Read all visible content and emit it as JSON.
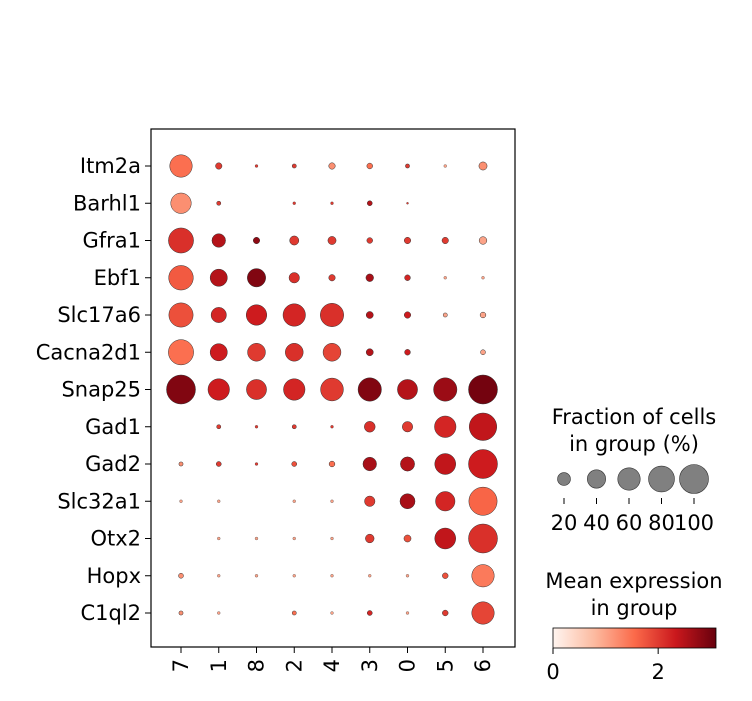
{
  "chart_data": {
    "type": "dotplot",
    "genes": [
      "Itm2a",
      "Barhl1",
      "Gfra1",
      "Ebf1",
      "Slc17a6",
      "Cacna2d1",
      "Snap25",
      "Gad1",
      "Gad2",
      "Slc32a1",
      "Otx2",
      "Hopx",
      "C1ql2"
    ],
    "groups": [
      "7",
      "1",
      "8",
      "2",
      "4",
      "3",
      "0",
      "5",
      "6"
    ],
    "fraction_pct": [
      [
        60,
        5,
        1,
        2,
        5,
        4,
        2,
        1,
        8
      ],
      [
        50,
        2,
        0,
        1,
        1,
        3,
        0.5,
        0,
        0
      ],
      [
        75,
        22,
        5,
        10,
        8,
        4,
        5,
        5,
        7
      ],
      [
        72,
        35,
        40,
        13,
        5,
        7,
        4,
        1,
        1
      ],
      [
        70,
        28,
        50,
        60,
        65,
        6,
        5,
        2,
        4
      ],
      [
        76,
        35,
        38,
        38,
        38,
        6,
        4,
        0,
        3
      ],
      [
        100,
        55,
        48,
        55,
        62,
        65,
        48,
        65,
        100
      ],
      [
        0,
        2,
        1,
        2,
        1,
        14,
        13,
        55,
        90
      ],
      [
        2,
        3,
        1,
        3,
        4,
        22,
        24,
        52,
        100
      ],
      [
        1,
        1,
        0,
        1,
        1,
        13,
        27,
        45,
        95
      ],
      [
        0,
        1,
        1,
        1,
        1,
        9,
        6,
        52,
        100
      ],
      [
        3,
        1,
        1,
        1,
        1,
        1,
        1,
        4,
        60
      ],
      [
        2,
        1,
        0,
        2,
        1,
        3,
        1,
        4,
        60
      ]
    ],
    "mean_expression": [
      [
        1.5,
        2.0,
        2.0,
        2.0,
        1.2,
        1.5,
        2.0,
        1.0,
        1.2
      ],
      [
        1.2,
        2.0,
        2.0,
        2.0,
        2.0,
        2.5,
        2.0,
        1.0,
        1.0
      ],
      [
        2.1,
        2.5,
        2.8,
        2.0,
        2.0,
        2.0,
        2.0,
        2.0,
        1.0
      ],
      [
        1.7,
        2.5,
        2.9,
        2.1,
        2.0,
        2.6,
        2.2,
        1.0,
        1.0
      ],
      [
        1.8,
        2.2,
        2.3,
        2.2,
        2.1,
        2.5,
        2.3,
        1.0,
        1.0
      ],
      [
        1.5,
        2.3,
        2.0,
        2.1,
        1.9,
        2.5,
        2.3,
        1.0,
        1.0
      ],
      [
        2.9,
        2.3,
        2.1,
        2.2,
        2.0,
        2.9,
        2.5,
        2.7,
        3.0
      ],
      [
        0,
        2.0,
        2.0,
        2.0,
        2.0,
        2.1,
        2.0,
        2.2,
        2.4
      ],
      [
        1.2,
        2.0,
        2.0,
        1.8,
        1.5,
        2.6,
        2.5,
        2.4,
        2.3
      ],
      [
        1.0,
        1.0,
        0,
        1.0,
        1.0,
        2.0,
        2.6,
        2.2,
        1.6
      ],
      [
        0,
        1.0,
        1.0,
        1.0,
        1.0,
        2.0,
        1.8,
        2.4,
        2.1
      ],
      [
        1.2,
        1.0,
        1.0,
        1.0,
        1.0,
        1.0,
        1.0,
        1.8,
        1.4
      ],
      [
        1.2,
        1.0,
        0,
        1.5,
        1.0,
        2.2,
        1.0,
        2.0,
        1.9
      ]
    ],
    "size_legend": {
      "title_line1": "Fraction of cells",
      "title_line2": "in group (%)",
      "values": [
        20,
        40,
        60,
        80,
        100
      ],
      "labels": [
        "20",
        "40",
        "60",
        "80",
        "100"
      ]
    },
    "color_legend": {
      "title_line1": "Mean expression",
      "title_line2": "in group",
      "range": [
        0,
        3.1
      ],
      "ticks": [
        0,
        2
      ],
      "tick_labels": [
        "0",
        "2"
      ],
      "colormap": "Reds"
    }
  }
}
